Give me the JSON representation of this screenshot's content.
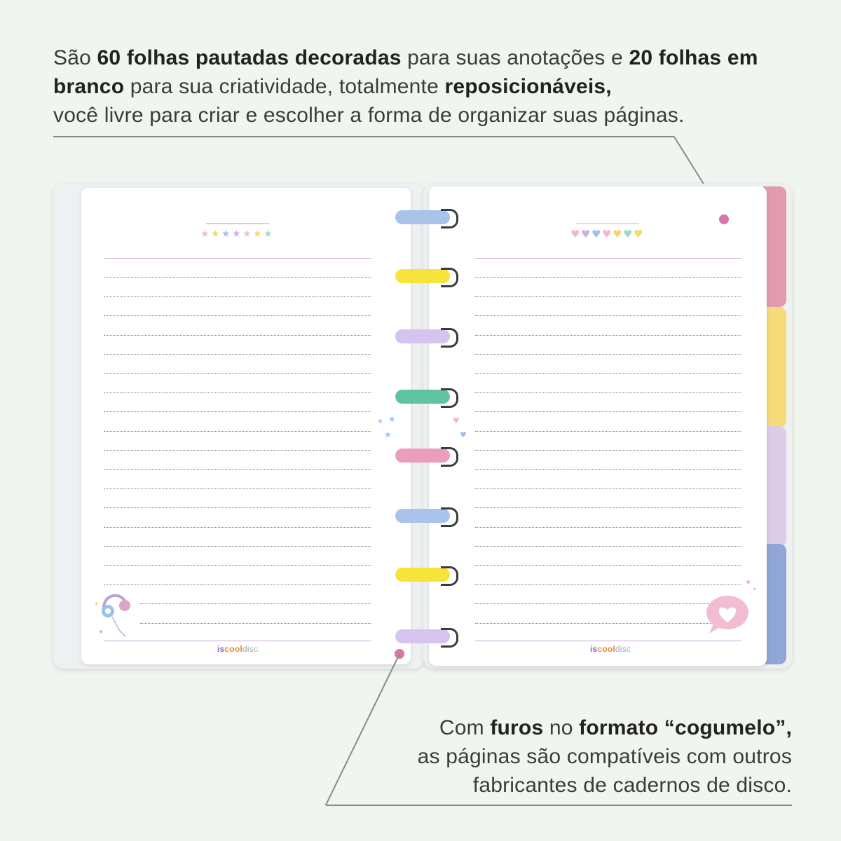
{
  "top_caption": {
    "t1": "São ",
    "b1": "60 folhas pautadas decoradas",
    "t2": " para suas anotações e ",
    "b2": "20 folhas em branco",
    "t3": " para sua criatividade, totalmente ",
    "b3": "reposicionáveis,",
    "t4": "você livre para criar e escolher a forma de organizar suas páginas."
  },
  "bottom_caption": {
    "t1": "Com ",
    "b1": "furos",
    "t2": " no ",
    "b2": "formato “cogumelo”,",
    "t3": "as páginas são compatíveis com outros",
    "t4": "fabricantes de cadernos de disco."
  },
  "brand": {
    "part1": "is",
    "part2": "cool",
    "part3": "disc"
  },
  "colors": {
    "accent_dot": "#d877a9",
    "rings": [
      "#a9c3ea",
      "#f7e43b",
      "#d6c3ee",
      "#5fc2a3",
      "#ea9ebc",
      "#a9c3ea",
      "#f7e43b",
      "#d6c3ee"
    ],
    "tabs": [
      "#e39aae",
      "#f5dc78",
      "#dccde7",
      "#8fa6d6"
    ]
  },
  "icons": {
    "left_corner": "headphones-icon",
    "right_corner": "heart-speech-bubble-icon",
    "left_header": "stars-decoration-icon",
    "right_header": "hearts-decoration-icon"
  }
}
